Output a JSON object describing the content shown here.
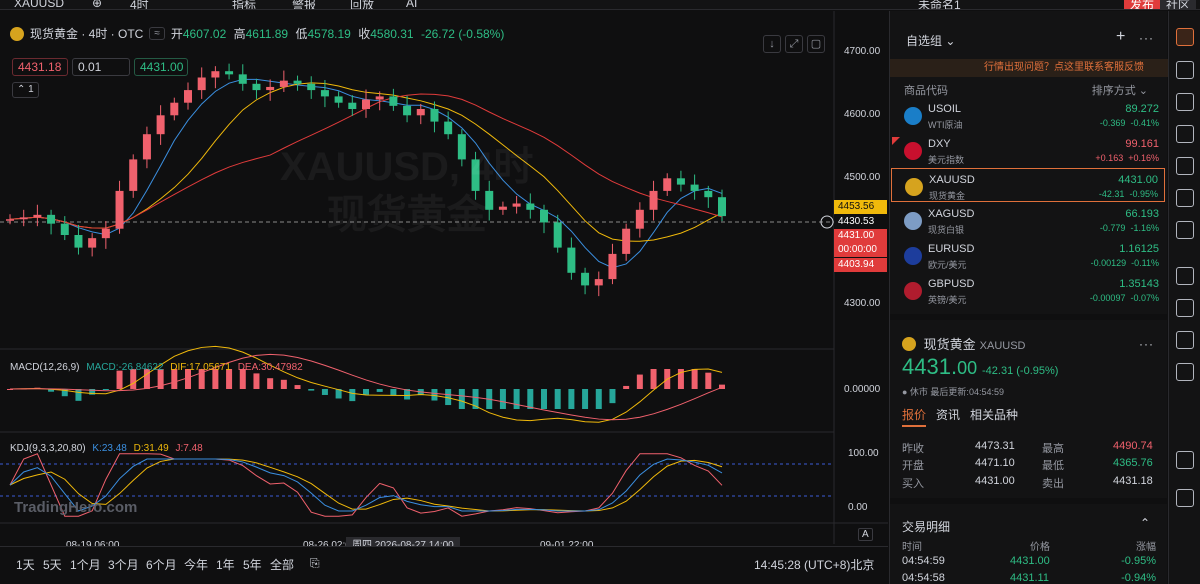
{
  "topbar": {
    "search_text": "XAUUSD",
    "interval": "4时",
    "indicators": "指标",
    "alert": "警报",
    "replay": "回放",
    "ai": "AI",
    "layout_name": "未命名1",
    "publish": "发布",
    "community": "社区"
  },
  "chart": {
    "symbol_title": "现货黄金 · 4时 · OTC",
    "open_label": "开",
    "open": "4607.02",
    "high_label": "高",
    "high": "4611.89",
    "low_label": "低",
    "low": "4578.19",
    "close_label": "收",
    "close": "4580.31",
    "change": "-26.72 (-0.58%)",
    "sell_price": "4431.18",
    "quantity": "0.01",
    "buy_price": "4431.00",
    "collapse_count": "1",
    "watermark_symbol": "XAUUSD, 4时",
    "watermark_name": "现货黄金",
    "logo": "TradingHero.com"
  },
  "axis": {
    "price_ticks": [
      "4700.00",
      "4600.00",
      "4500.00",
      "4300.00"
    ],
    "macd_tick": "0.00000",
    "kdj_ticks": [
      "100.00",
      "0.00"
    ],
    "tag_ma": "4453.56",
    "tag_cross": "4430.53",
    "tag_last": "4431.00",
    "tag_countdown": "00:00:00",
    "tag_low": "4403.94",
    "x_labels": [
      "08-19 06:00",
      "08-26 02:0",
      "09-01 22:00"
    ],
    "x_highlight": "周四 2026-08-27  14:00",
    "auto_label": "A"
  },
  "macd": {
    "title": "MACD(12,26,9)",
    "macd": "MACD:-26.84622",
    "dif": "DIF:17.05671",
    "dea": "DEA:30.47982"
  },
  "kdj": {
    "title": "KDJ(9,3,3,20,80)",
    "k": "K:23.48",
    "d": "D:31.49",
    "j": "J:7.48"
  },
  "bottombar": {
    "ranges": [
      "1天",
      "5天",
      "1个月",
      "3个月",
      "6个月",
      "今年",
      "1年",
      "5年",
      "全部"
    ],
    "time": "14:45:28 (UTC+8)北京"
  },
  "watchlist": {
    "title": "自选组",
    "feedback": "行情出现问题？点这里联系客服反馈",
    "col_symbol": "商品代码",
    "col_sort": "排序方式",
    "items": [
      {
        "symbol": "USOIL",
        "name": "WTI原油",
        "price": "89.272",
        "change": "-0.369",
        "pct": "-0.41%",
        "dir": "up",
        "color": "#1a7ec8"
      },
      {
        "symbol": "DXY",
        "name": "美元指数",
        "price": "99.161",
        "change": "+0.163",
        "pct": "+0.16%",
        "dir": "down",
        "color": "#c8102e"
      },
      {
        "symbol": "XAUUSD",
        "name": "现货黄金",
        "price": "4431.00",
        "change": "-42.31",
        "pct": "-0.95%",
        "dir": "up",
        "color": "#d6a31e"
      },
      {
        "symbol": "XAGUSD",
        "name": "现货白银",
        "price": "66.193",
        "change": "-0.779",
        "pct": "-1.16%",
        "dir": "up",
        "color": "#7d9cc4"
      },
      {
        "symbol": "EURUSD",
        "name": "欧元/美元",
        "price": "1.16125",
        "change": "-0.00129",
        "pct": "-0.11%",
        "dir": "up",
        "color": "#1d3d9c"
      },
      {
        "symbol": "GBPUSD",
        "name": "英镑/美元",
        "price": "1.35143",
        "change": "-0.00097",
        "pct": "-0.07%",
        "dir": "up",
        "color": "#b01c2e"
      }
    ]
  },
  "detail": {
    "name": "现货黄金",
    "symbol": "XAUUSD",
    "price_int": "4431.",
    "price_dec": "00",
    "change": "-42.31  (-0.95%)",
    "status": "● 休市 最后更新:04:54:59",
    "tabs": [
      "报价",
      "资讯",
      "相关品种"
    ],
    "prev_close_label": "昨收",
    "prev_close": "4473.31",
    "high_label": "最高",
    "high": "4490.74",
    "open_label": "开盘",
    "open": "4471.10",
    "low_label": "最低",
    "low": "4365.76",
    "bid_label": "买入",
    "bid": "4431.00",
    "ask_label": "卖出",
    "ask": "4431.18"
  },
  "trades": {
    "title": "交易明细",
    "col_time": "时间",
    "col_price": "价格",
    "col_change": "涨幅",
    "rows": [
      {
        "time": "04:54:59",
        "price": "4431.00",
        "change": "-0.95%"
      },
      {
        "time": "04:54:58",
        "price": "4431.11",
        "change": "-0.94%"
      }
    ]
  },
  "colors": {
    "up": "#2ebd85",
    "down": "#f0616d",
    "accent": "#e0703b"
  }
}
